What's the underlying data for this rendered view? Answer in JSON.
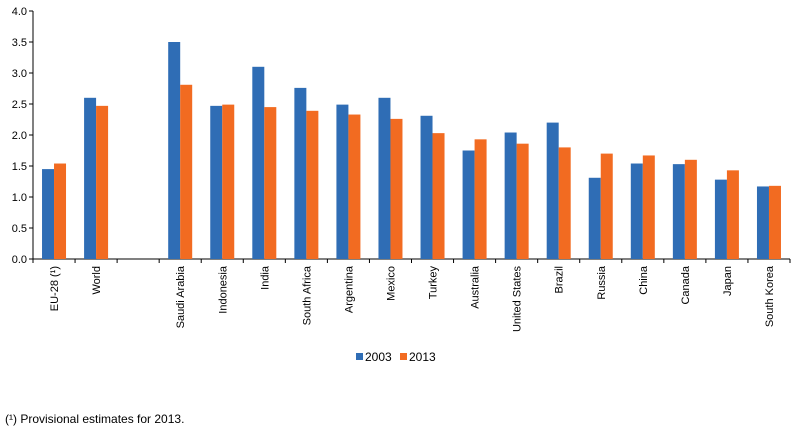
{
  "chart_data": {
    "type": "bar",
    "categories": [
      "EU-28 (¹)",
      "World",
      "",
      "Saudi Arabia",
      "Indonesia",
      "India",
      "South Africa",
      "Argentina",
      "Mexico",
      "Turkey",
      "Australia",
      "United States",
      "Brazil",
      "Russia",
      "China",
      "Canada",
      "Japan",
      "South Korea"
    ],
    "series": [
      {
        "name": "2003",
        "color": "#2f6db5",
        "values": [
          1.45,
          2.6,
          null,
          3.5,
          2.47,
          3.1,
          2.76,
          2.49,
          2.6,
          2.31,
          1.75,
          2.04,
          2.2,
          1.31,
          1.54,
          1.53,
          1.28,
          1.17
        ]
      },
      {
        "name": "2013",
        "color": "#f26b21",
        "values": [
          1.54,
          2.47,
          null,
          2.81,
          2.49,
          2.45,
          2.39,
          2.33,
          2.26,
          2.03,
          1.93,
          1.86,
          1.8,
          1.7,
          1.67,
          1.6,
          1.43,
          1.18
        ]
      }
    ],
    "ylim": [
      0,
      4.0
    ],
    "yticks": [
      "0.0",
      "0.5",
      "1.0",
      "1.5",
      "2.0",
      "2.5",
      "3.0",
      "3.5",
      "4.0"
    ],
    "grid": false,
    "legend": "bottom-center",
    "title": "",
    "xlabel": "",
    "ylabel": ""
  },
  "footnote": "(¹) Provisional estimates for 2013."
}
